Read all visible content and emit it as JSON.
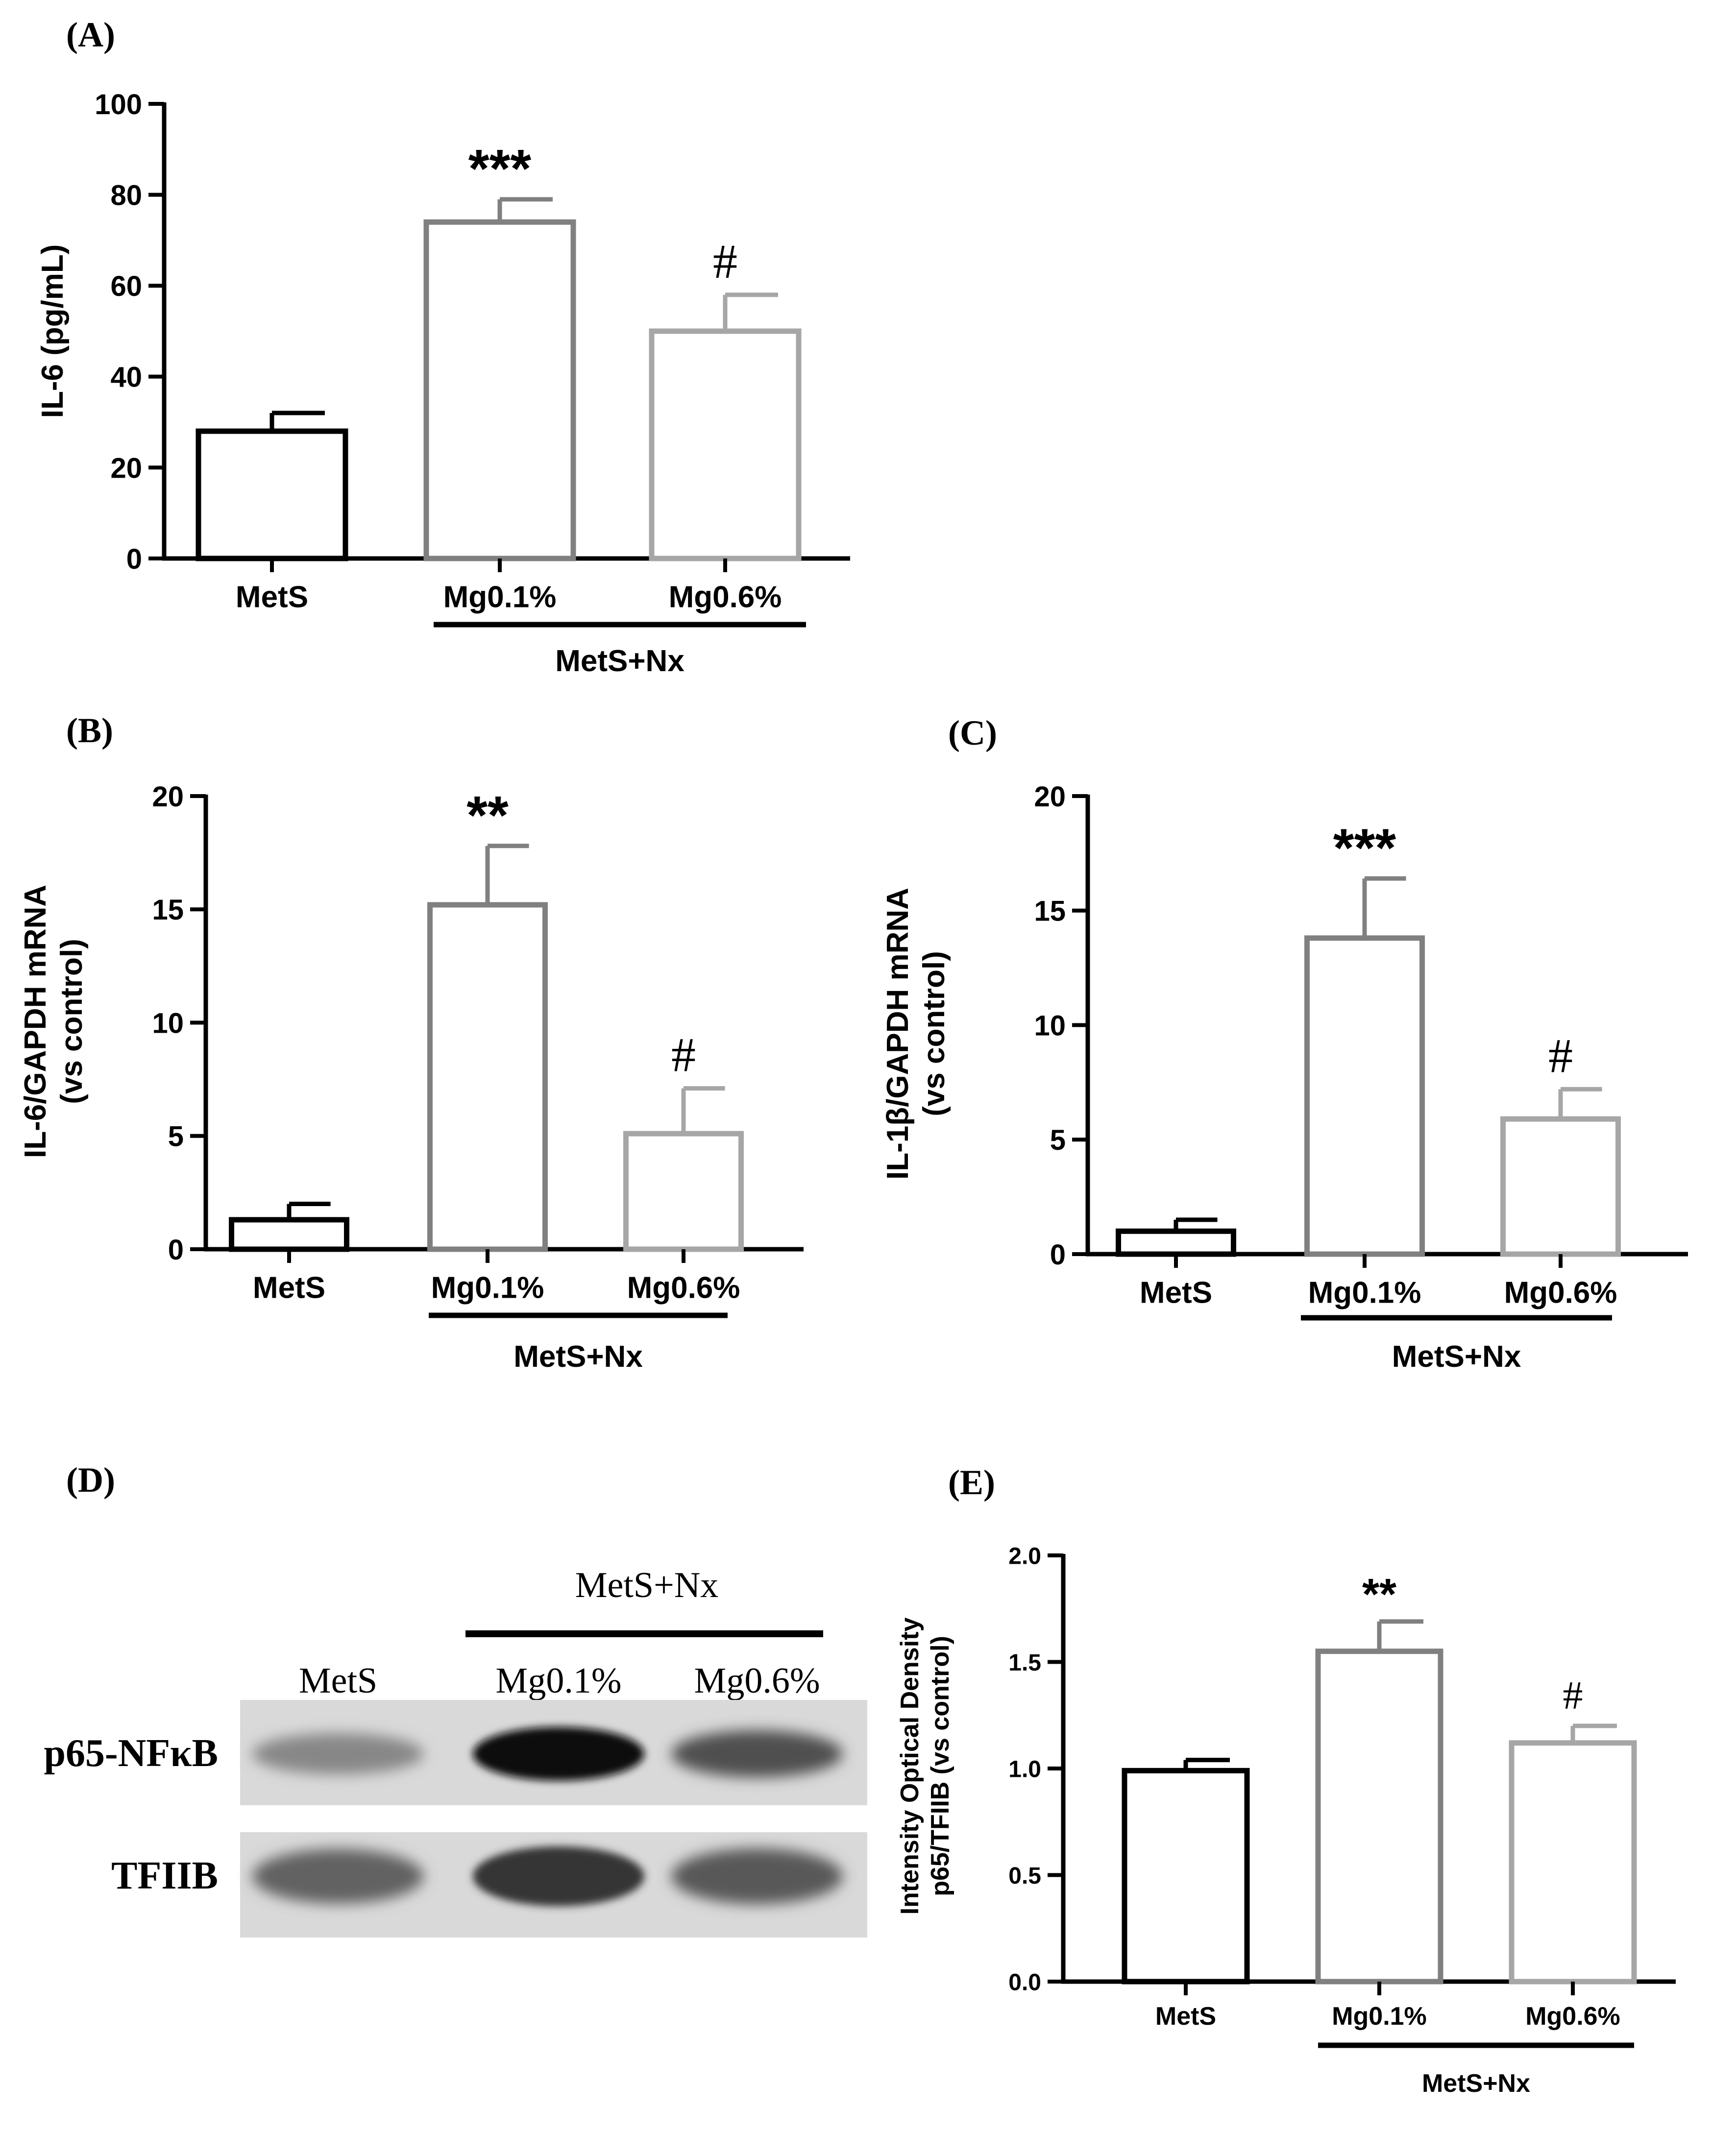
{
  "colors": {
    "metS": "#000000",
    "mg01": "#808080",
    "mg06": "#a6a6a6",
    "axis": "#000000"
  },
  "chart_data": [
    {
      "panel": "(A)",
      "type": "bar",
      "categories": [
        "MetS",
        "Mg0.1%",
        "Mg0.6%"
      ],
      "values": [
        28,
        74,
        50
      ],
      "errors": [
        4,
        5,
        8
      ],
      "significance": [
        "",
        "***",
        "#"
      ],
      "ylabel": "IL-6 (pg/mL)",
      "ylim": [
        0,
        100
      ],
      "yticks": [
        "0",
        "20",
        "40",
        "60",
        "80",
        "100"
      ],
      "group_label": "MetS+Nx"
    },
    {
      "panel": "(B)",
      "type": "bar",
      "categories": [
        "MetS",
        "Mg0.1%",
        "Mg0.6%"
      ],
      "values": [
        1.3,
        15.2,
        5.1
      ],
      "errors": [
        0.7,
        2.6,
        2.0
      ],
      "significance": [
        "",
        "**",
        "#"
      ],
      "ylabel": [
        "IL-6/GAPDH mRNA",
        "(vs control)"
      ],
      "ylim": [
        0,
        20
      ],
      "yticks": [
        "0",
        "5",
        "10",
        "15",
        "20"
      ],
      "group_label": "MetS+Nx"
    },
    {
      "panel": "(C)",
      "type": "bar",
      "categories": [
        "MetS",
        "Mg0.1%",
        "Mg0.6%"
      ],
      "values": [
        1.0,
        13.8,
        5.9
      ],
      "errors": [
        0.5,
        2.6,
        1.3
      ],
      "significance": [
        "",
        "***",
        "#"
      ],
      "ylabel": [
        "IL-1β/GAPDH mRNA",
        "(vs control)"
      ],
      "ylim": [
        0,
        20
      ],
      "yticks": [
        "0",
        "5",
        "10",
        "15",
        "20"
      ],
      "group_label": "MetS+Nx"
    },
    {
      "panel": "(E)",
      "type": "bar",
      "categories": [
        "MetS",
        "Mg0.1%",
        "Mg0.6%"
      ],
      "values": [
        0.99,
        1.55,
        1.12
      ],
      "errors": [
        0.05,
        0.14,
        0.08
      ],
      "significance": [
        "",
        "**",
        "#"
      ],
      "ylabel": [
        "Intensity Optical Density",
        "p65/TFIIB (vs control)"
      ],
      "ylim": [
        0,
        2.0
      ],
      "yticks": [
        "0.0",
        "0.5",
        "1.0",
        "1.5",
        "2.0"
      ],
      "group_label": "MetS+Nx"
    }
  ],
  "blot": {
    "panel": "(D)",
    "group_label": "MetS+Nx",
    "lanes": [
      "MetS",
      "Mg0.1%",
      "Mg0.6%"
    ],
    "rows": [
      {
        "label": "p65-NFκB",
        "intensity": [
          0.35,
          1.0,
          0.65
        ]
      },
      {
        "label": "TFIIB",
        "intensity": [
          0.55,
          0.8,
          0.6
        ]
      }
    ]
  }
}
